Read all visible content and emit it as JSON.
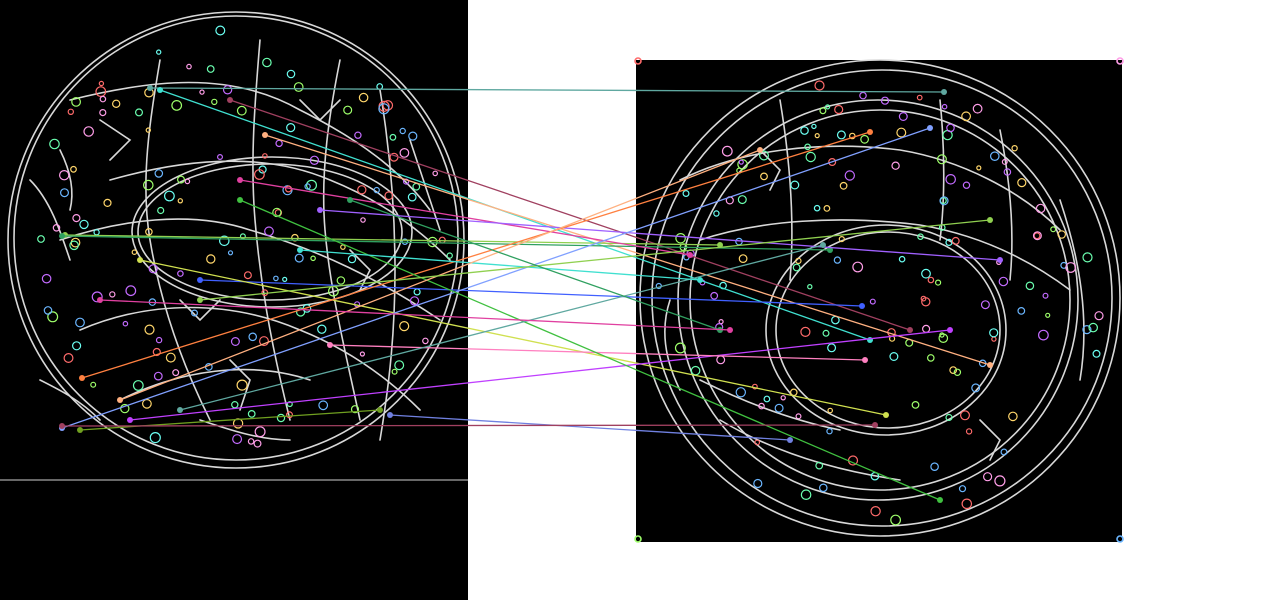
{
  "canvas_background": "#ffffff",
  "left_image": {
    "background": "#000000",
    "edge_color": "#d8d8d8",
    "keypoint_colors": [
      "#ff6b6b",
      "#6bffb0",
      "#ffd66b",
      "#6bb6ff",
      "#c36bff",
      "#ff9ee8",
      "#9eff6b",
      "#6bfff2"
    ]
  },
  "right_image": {
    "background": "#000000",
    "edge_color": "#d8d8d8"
  },
  "match_colors": [
    "#5fa8a0",
    "#a04060",
    "#40e0d0",
    "#ffb080",
    "#90d050",
    "#30a060",
    "#e040a0",
    "#a060ff",
    "#4060ff",
    "#d0e050",
    "#ff8040",
    "#80a0ff",
    "#c040ff",
    "#70a020",
    "#ff80c0",
    "#40c040",
    "#7080e0"
  ]
}
